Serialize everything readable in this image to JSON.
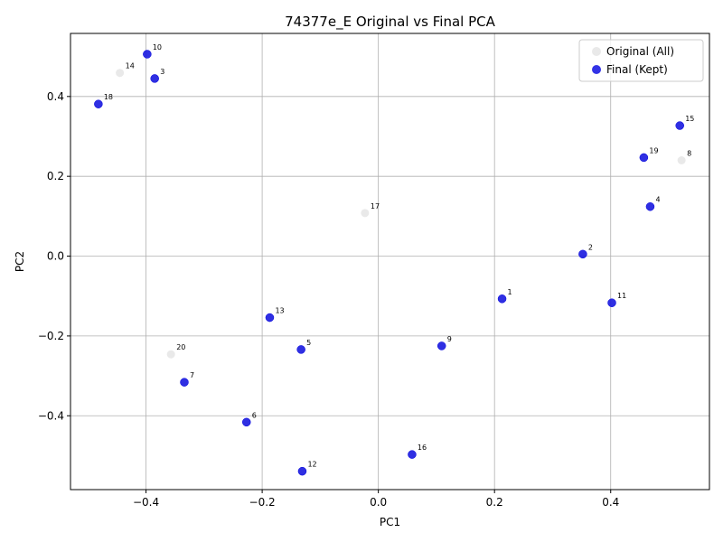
{
  "chart_data": {
    "type": "scatter",
    "title": "74377e_E Original vs Final PCA",
    "xlabel": "PC1",
    "ylabel": "PC2",
    "xlim": [
      -0.53,
      0.57
    ],
    "ylim": [
      -0.585,
      0.558
    ],
    "xticks": [
      -0.4,
      -0.2,
      0.0,
      0.2,
      0.4
    ],
    "yticks": [
      -0.4,
      -0.2,
      0.0,
      0.2,
      0.4
    ],
    "xtick_labels": [
      "−0.4",
      "−0.2",
      "0.0",
      "0.2",
      "0.4"
    ],
    "ytick_labels": [
      "−0.4",
      "−0.2",
      "0.0",
      "0.2",
      "0.4"
    ],
    "grid": true,
    "legend_position": "top-right",
    "series": [
      {
        "name": "Original (All)",
        "color": "#d3d3d3",
        "points": [
          {
            "label": "1",
            "x": 0.213,
            "y": -0.107
          },
          {
            "label": "2",
            "x": 0.352,
            "y": 0.005
          },
          {
            "label": "3",
            "x": -0.385,
            "y": 0.445
          },
          {
            "label": "4",
            "x": 0.468,
            "y": 0.124
          },
          {
            "label": "5",
            "x": -0.133,
            "y": -0.234
          },
          {
            "label": "6",
            "x": -0.227,
            "y": -0.416
          },
          {
            "label": "7",
            "x": -0.334,
            "y": -0.316
          },
          {
            "label": "8",
            "x": 0.522,
            "y": 0.24
          },
          {
            "label": "9",
            "x": 0.109,
            "y": -0.225
          },
          {
            "label": "10",
            "x": -0.398,
            "y": 0.506
          },
          {
            "label": "11",
            "x": 0.402,
            "y": -0.117
          },
          {
            "label": "12",
            "x": -0.131,
            "y": -0.539
          },
          {
            "label": "13",
            "x": -0.187,
            "y": -0.154
          },
          {
            "label": "14",
            "x": -0.445,
            "y": 0.459
          },
          {
            "label": "15",
            "x": 0.519,
            "y": 0.327
          },
          {
            "label": "16",
            "x": 0.058,
            "y": -0.497
          },
          {
            "label": "17",
            "x": -0.023,
            "y": 0.108
          },
          {
            "label": "18",
            "x": -0.482,
            "y": 0.381
          },
          {
            "label": "19",
            "x": 0.457,
            "y": 0.247
          },
          {
            "label": "20",
            "x": -0.357,
            "y": -0.246
          }
        ]
      },
      {
        "name": "Final (Kept)",
        "color": "#0000e0",
        "points": [
          {
            "label": "1",
            "x": 0.213,
            "y": -0.107
          },
          {
            "label": "2",
            "x": 0.352,
            "y": 0.005
          },
          {
            "label": "3",
            "x": -0.385,
            "y": 0.445
          },
          {
            "label": "4",
            "x": 0.468,
            "y": 0.124
          },
          {
            "label": "5",
            "x": -0.133,
            "y": -0.234
          },
          {
            "label": "6",
            "x": -0.227,
            "y": -0.416
          },
          {
            "label": "7",
            "x": -0.334,
            "y": -0.316
          },
          {
            "label": "9",
            "x": 0.109,
            "y": -0.225
          },
          {
            "label": "10",
            "x": -0.398,
            "y": 0.506
          },
          {
            "label": "11",
            "x": 0.402,
            "y": -0.117
          },
          {
            "label": "12",
            "x": -0.131,
            "y": -0.539
          },
          {
            "label": "13",
            "x": -0.187,
            "y": -0.154
          },
          {
            "label": "15",
            "x": 0.519,
            "y": 0.327
          },
          {
            "label": "16",
            "x": 0.058,
            "y": -0.497
          },
          {
            "label": "18",
            "x": -0.482,
            "y": 0.381
          },
          {
            "label": "19",
            "x": 0.457,
            "y": 0.247
          }
        ]
      }
    ]
  }
}
